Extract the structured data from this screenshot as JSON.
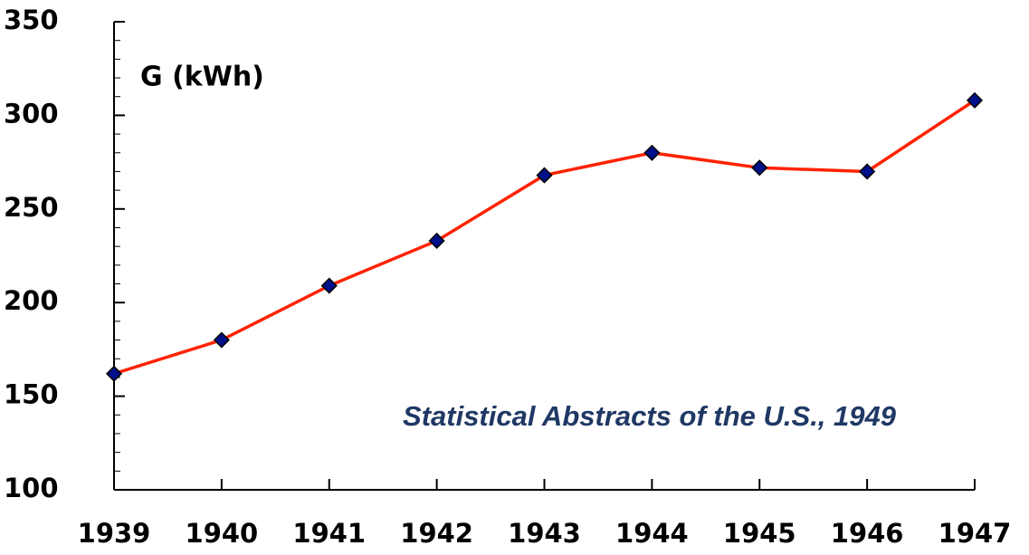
{
  "chart_data": {
    "type": "line",
    "annotations": [
      "G (kWh)",
      "Statistical Abstracts of the U.S., 1949"
    ],
    "x": [
      1939,
      1940,
      1941,
      1942,
      1943,
      1944,
      1945,
      1946,
      1947
    ],
    "series": [
      {
        "name": "G",
        "color": "#ff2200",
        "marker_color": "#00108a",
        "values": [
          162,
          180,
          209,
          233,
          268,
          280,
          272,
          270,
          308
        ]
      }
    ],
    "xlim": [
      1939,
      1947
    ],
    "xticks": [
      1939,
      1940,
      1941,
      1942,
      1943,
      1944,
      1945,
      1946,
      1947
    ],
    "ylim": [
      100,
      350
    ],
    "yticks": [
      100,
      150,
      200,
      250,
      300,
      350
    ],
    "grid": false
  }
}
